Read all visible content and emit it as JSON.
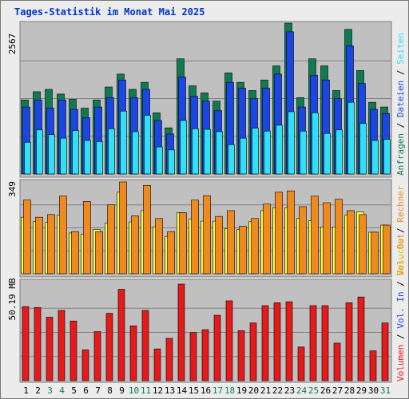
{
  "title": "Tages-Statistik im Monat Mai 2025",
  "colors": {
    "anfragen": "#107a52",
    "dateien": "#1a46e6",
    "seiten": "#30e0f8",
    "besuche": "#ffff33",
    "rechner": "#f08a1e",
    "volumen": "#e61a1a",
    "weekend_tick": "#107a52",
    "panel_bg": "#c0c0c0"
  },
  "chart_data": [
    {
      "type": "bar",
      "panel": "top",
      "ymax_label": "2567",
      "ymax": 2567,
      "categories": [
        "1",
        "2",
        "3",
        "4",
        "5",
        "6",
        "7",
        "8",
        "9",
        "10",
        "11",
        "12",
        "13",
        "14",
        "15",
        "16",
        "17",
        "18",
        "19",
        "20",
        "21",
        "22",
        "23",
        "24",
        "25",
        "26",
        "27",
        "28",
        "29",
        "30",
        "31"
      ],
      "weekend_days": [
        3,
        4,
        10,
        11,
        17,
        18,
        24,
        25,
        31
      ],
      "series": [
        {
          "name": "Anfragen",
          "values": [
            1260,
            1400,
            1440,
            1360,
            1270,
            1120,
            1260,
            1480,
            1700,
            1440,
            1560,
            1040,
            785,
            1960,
            1500,
            1380,
            1240,
            1720,
            1560,
            1420,
            1600,
            1840,
            2567,
            1300,
            1960,
            1840,
            1420,
            2460,
            1760,
            1220,
            1140
          ]
        },
        {
          "name": "Dateien",
          "values": [
            1140,
            1260,
            1120,
            1260,
            1100,
            960,
            1140,
            1300,
            1600,
            1300,
            1440,
            910,
            680,
            1650,
            1320,
            1240,
            1080,
            1560,
            1460,
            1280,
            1460,
            1700,
            2420,
            1140,
            1680,
            1600,
            1280,
            2180,
            1540,
            1100,
            1030
          ]
        },
        {
          "name": "Seiten",
          "values": [
            540,
            750,
            670,
            610,
            740,
            570,
            550,
            770,
            1070,
            720,
            1000,
            460,
            410,
            910,
            770,
            760,
            720,
            500,
            610,
            780,
            730,
            830,
            1060,
            730,
            1040,
            690,
            750,
            1220,
            860,
            570,
            590
          ]
        }
      ],
      "vertical_labels": [
        "Anfragen",
        "Dateien",
        "Seiten"
      ]
    },
    {
      "type": "bar",
      "panel": "middle",
      "ymax_label": "349",
      "ymax": 349,
      "categories": [
        "1",
        "2",
        "3",
        "4",
        "5",
        "6",
        "7",
        "8",
        "9",
        "10",
        "11",
        "12",
        "13",
        "14",
        "15",
        "16",
        "17",
        "18",
        "19",
        "20",
        "21",
        "22",
        "23",
        "24",
        "25",
        "26",
        "27",
        "28",
        "29",
        "30",
        "31"
      ],
      "series": [
        {
          "name": "Besuche",
          "values": [
            215,
            198,
            195,
            222,
            155,
            150,
            168,
            192,
            310,
            197,
            240,
            178,
            142,
            232,
            208,
            200,
            200,
            172,
            168,
            198,
            240,
            250,
            250,
            210,
            202,
            178,
            178,
            222,
            235,
            158,
            185
          ]
        },
        {
          "name": "Rechner",
          "values": [
            280,
            215,
            225,
            295,
            160,
            275,
            160,
            262,
            349,
            220,
            336,
            210,
            160,
            232,
            280,
            297,
            218,
            240,
            180,
            210,
            265,
            310,
            315,
            255,
            295,
            270,
            283,
            240,
            225,
            158,
            185
          ]
        }
      ],
      "vertical_labels": [
        "Besuche",
        "Rechner"
      ]
    },
    {
      "type": "bar",
      "panel": "bottom",
      "ymax_label": "50.19 MB",
      "ymax": 50.19,
      "categories": [
        "1",
        "2",
        "3",
        "4",
        "5",
        "6",
        "7",
        "8",
        "9",
        "10",
        "11",
        "12",
        "13",
        "14",
        "15",
        "16",
        "17",
        "18",
        "19",
        "20",
        "21",
        "22",
        "23",
        "24",
        "25",
        "26",
        "27",
        "28",
        "29",
        "30",
        "31"
      ],
      "series": [
        {
          "name": "Volumen",
          "values": [
            38.5,
            38.0,
            33.0,
            36.5,
            31.0,
            16.0,
            25.5,
            35.0,
            47.5,
            28.5,
            36.5,
            16.5,
            22.0,
            50.19,
            25.0,
            26.5,
            34.0,
            41.5,
            26.0,
            30.0,
            39.0,
            40.5,
            41.0,
            17.5,
            39.0,
            39.0,
            19.5,
            40.5,
            43.5,
            15.5,
            30.0
          ]
        }
      ],
      "vertical_labels": [
        "Volumen",
        "Vol. In",
        "Vol. Out"
      ]
    }
  ],
  "vertical_legend": {
    "top": [
      {
        "text": "Anfragen",
        "color": "#107a52"
      },
      {
        "text": " / ",
        "color": "#000000"
      },
      {
        "text": "Dateien",
        "color": "#1a46e6"
      },
      {
        "text": " / ",
        "color": "#000000"
      },
      {
        "text": "Seiten",
        "color": "#30e0f8"
      }
    ],
    "middle": [
      {
        "text": "Besuche",
        "color": "#cccc00"
      },
      {
        "text": " / ",
        "color": "#000000"
      },
      {
        "text": "Rechner",
        "color": "#f08a1e"
      }
    ],
    "bottom": [
      {
        "text": "Volumen",
        "color": "#e61a1a"
      },
      {
        "text": " / ",
        "color": "#000000"
      },
      {
        "text": "Vol. In",
        "color": "#1a46e6"
      },
      {
        "text": " / ",
        "color": "#000000"
      },
      {
        "text": "Vol. Out",
        "color": "#f08a1e"
      }
    ]
  }
}
